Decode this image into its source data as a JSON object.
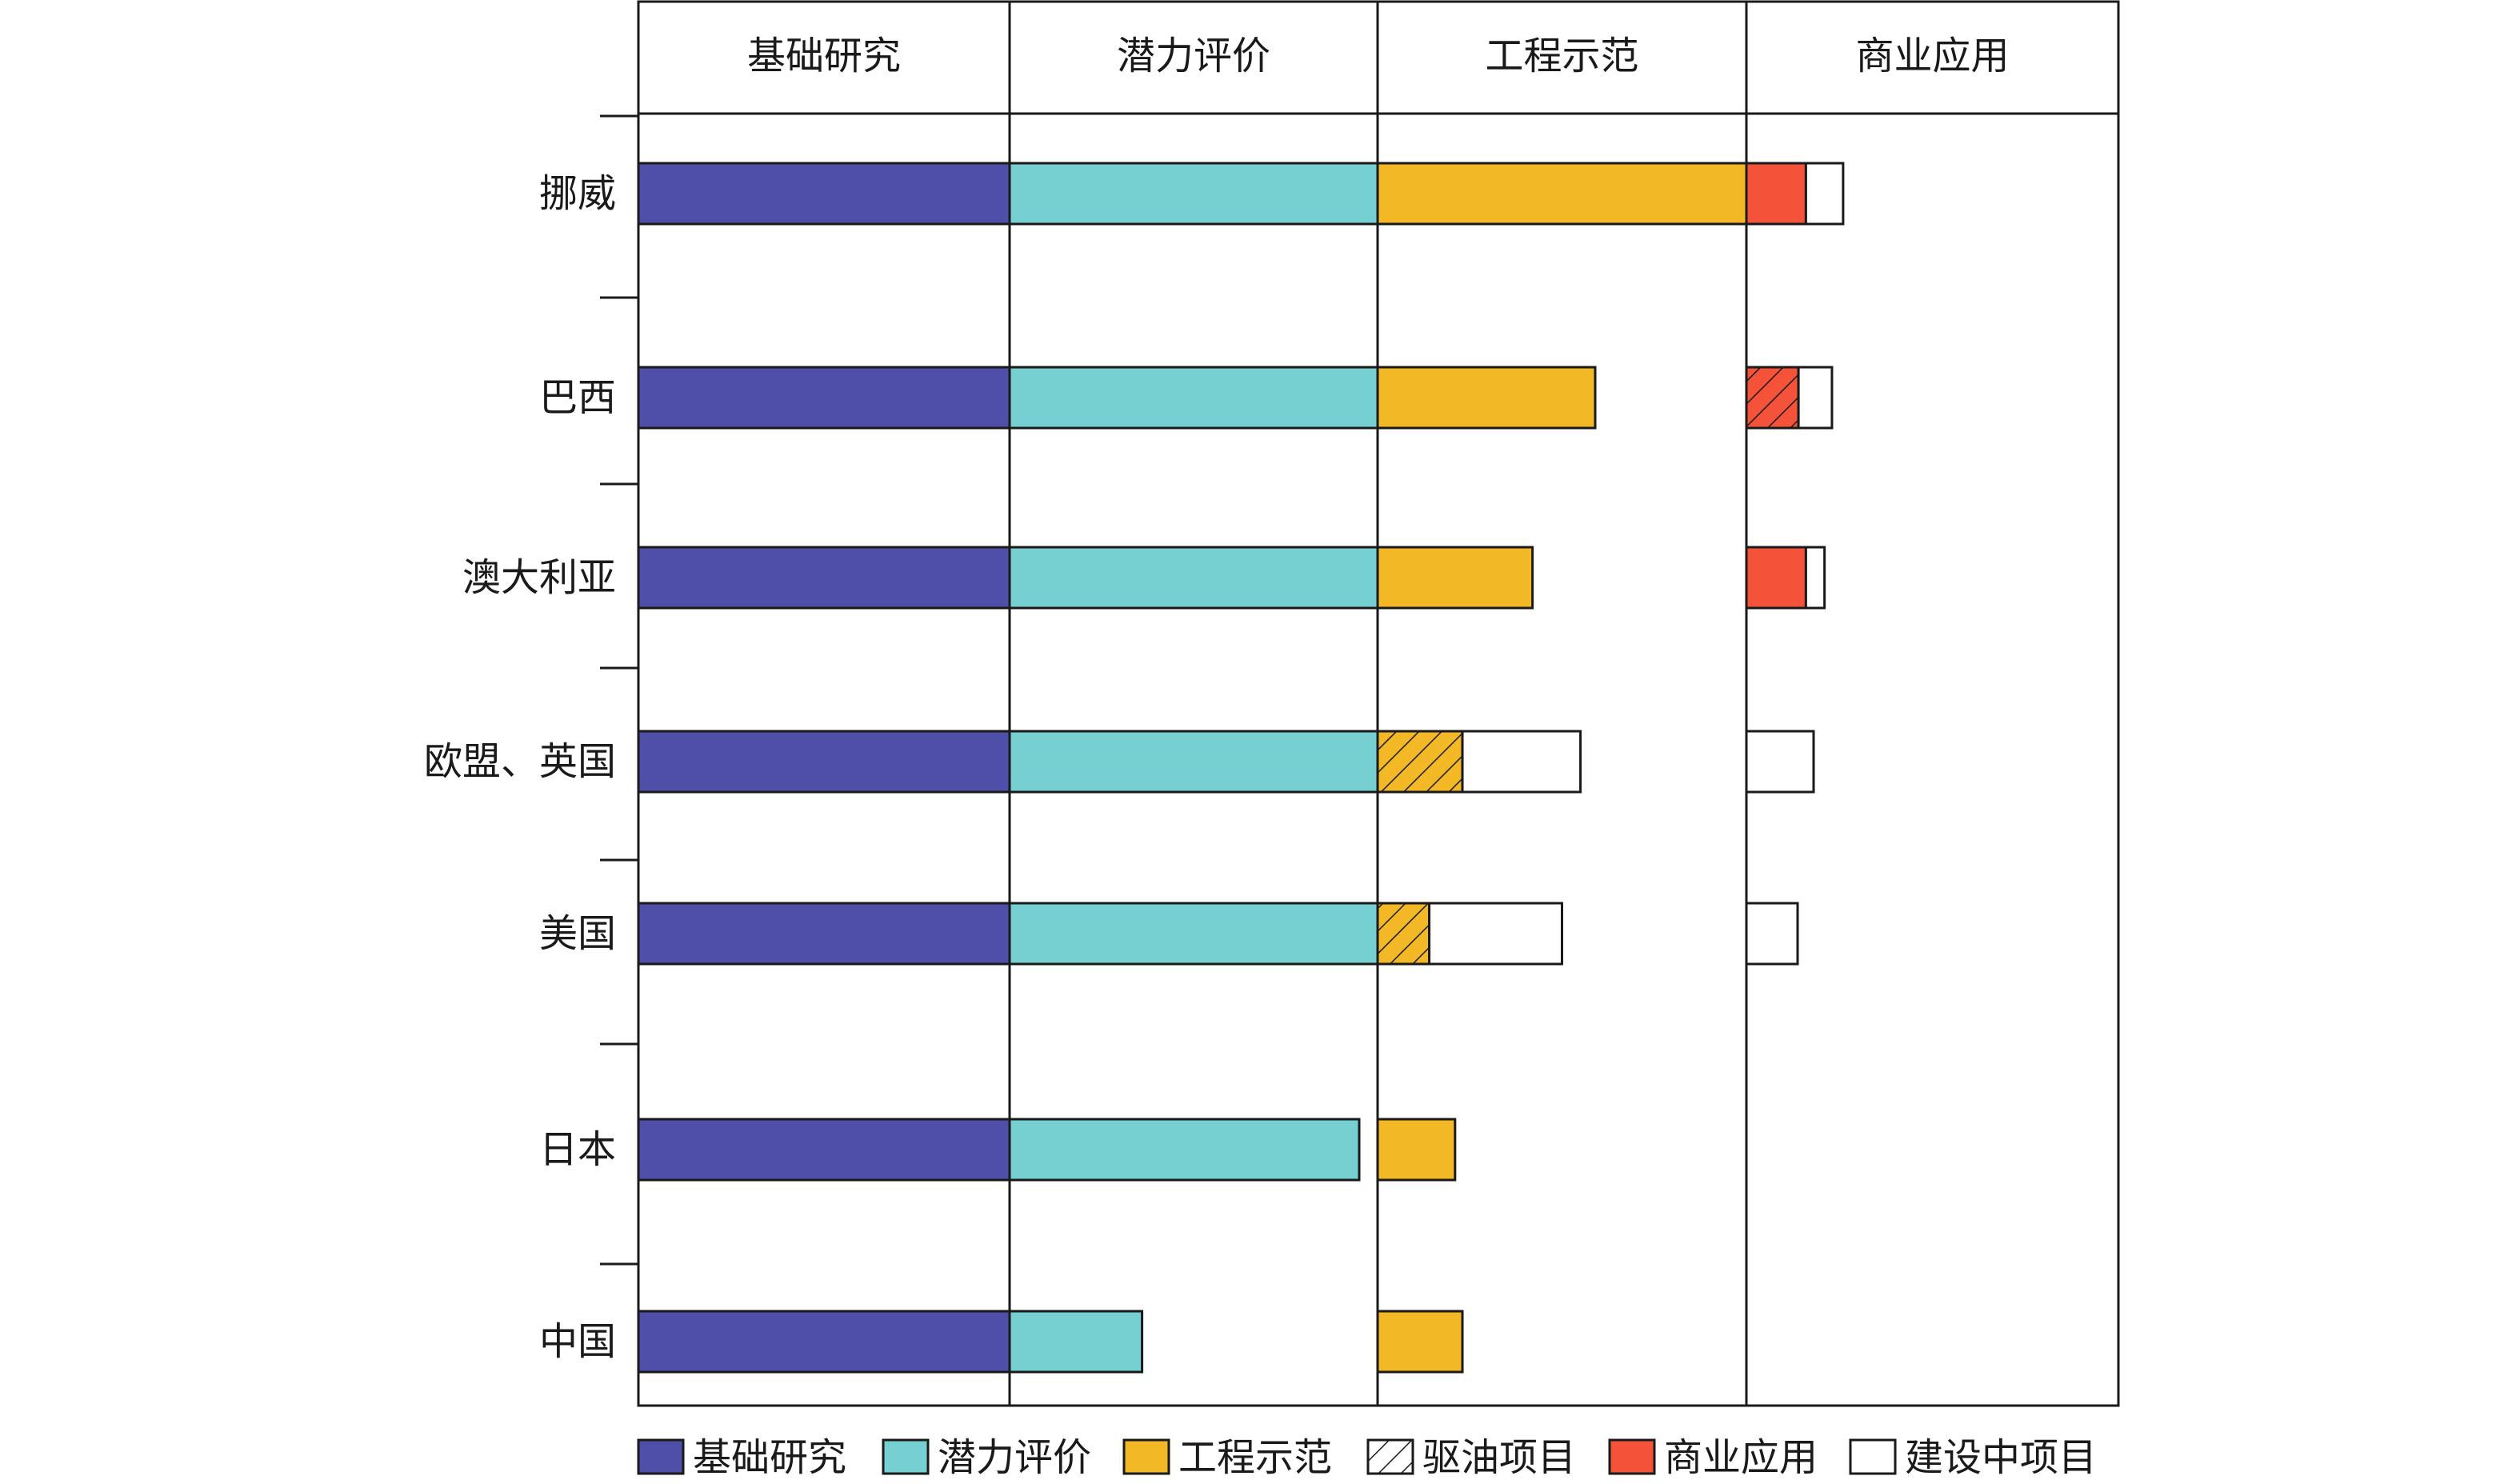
{
  "chart_data": {
    "type": "bar",
    "title": "",
    "stages": [
      "基础研究",
      "潜力评价",
      "工程示范",
      "商业应用"
    ],
    "categories": [
      "挪威",
      "巴西",
      "澳大利亚",
      "欧盟、英国",
      "美国",
      "日本",
      "中国"
    ],
    "series": [
      {
        "name": "基础研究",
        "values": [
          1.0,
          1.0,
          1.0,
          1.0,
          1.0,
          1.0,
          1.0
        ]
      },
      {
        "name": "潜力评价",
        "values": [
          1.0,
          1.0,
          1.0,
          1.0,
          1.0,
          0.95,
          0.36
        ]
      },
      {
        "name": "工程示范",
        "values": [
          1.0,
          0.59,
          0.42,
          0.0,
          0.0,
          0.21,
          0.23
        ]
      },
      {
        "name": "驱油项目",
        "values": [
          0.0,
          0.0,
          0.0,
          0.23,
          0.14,
          0.0,
          0.0
        ]
      },
      {
        "name": "商业应用",
        "values": [
          0.16,
          0.14,
          0.16,
          0.0,
          0.0,
          0.0,
          0.0
        ]
      },
      {
        "name": "建设中项目",
        "values": [
          0.1,
          0.09,
          0.05,
          0.32,
          0.36,
          0.0,
          0.0
        ]
      }
    ],
    "hatched_series": {
      "驱油项目": {
        "stage": "工程示范",
        "base_series": "工程示范",
        "present": [
          false,
          false,
          false,
          true,
          true,
          false,
          false
        ]
      },
      "商业应用": {
        "stage": "商业应用",
        "hatched": [
          false,
          true,
          false,
          false,
          false,
          false,
          false
        ]
      }
    },
    "xlim": [
      0,
      4
    ],
    "legend_position": "bottom",
    "grid": false,
    "colors": {
      "基础研究": "#4f4ea8",
      "潜力评价": "#76d0d1",
      "工程示范": "#f2b826",
      "驱油项目": "#f2b826",
      "商业应用": "#f4533a",
      "建设中项目": "#ffffff",
      "axis": "#1a1a1a",
      "hatch": "#1a1a1a"
    },
    "legend": [
      "基础研究",
      "潜力评价",
      "工程示范",
      "驱油项目",
      "商业应用",
      "建设中项目"
    ]
  }
}
